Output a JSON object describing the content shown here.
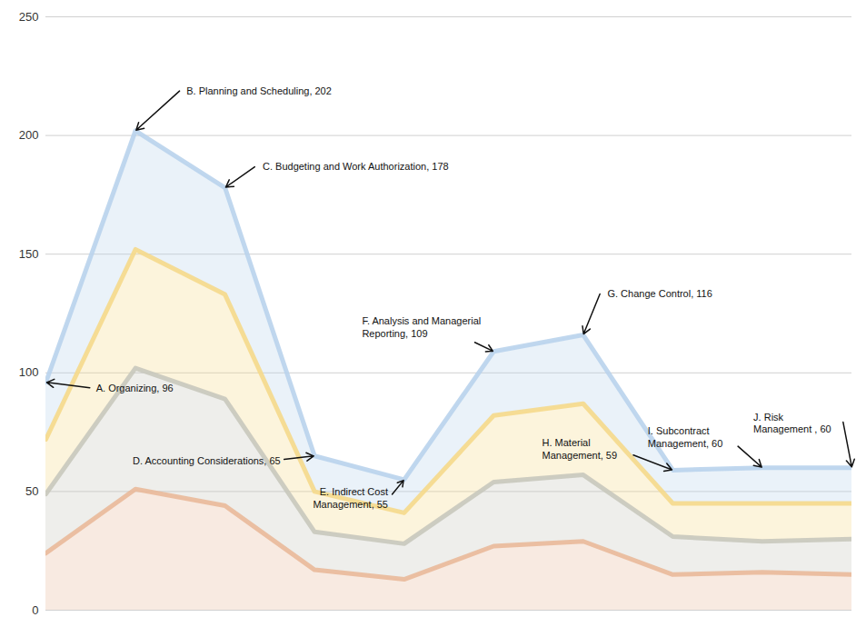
{
  "chart_data": {
    "type": "area",
    "stacked": true,
    "categories": [
      "A. Organizing",
      "B. Planning and Scheduling",
      "C. Budgeting and Work Authorization",
      "D. Accounting Considerations",
      "E. Indirect Cost Management",
      "F. Analysis and Managerial Reporting",
      "G. Change Control",
      "H. Material Management",
      "I. Subcontract Management",
      "J. Risk Management"
    ],
    "series": [
      {
        "color": "#e9b99a",
        "values": [
          24,
          51,
          44,
          17,
          13,
          27,
          29,
          15,
          16,
          15
        ]
      },
      {
        "color": "#c8c8bc",
        "values": [
          25,
          51,
          45,
          16,
          15,
          27,
          28,
          16,
          13,
          15
        ]
      },
      {
        "color": "#f5d98b",
        "values": [
          23,
          50,
          44,
          17,
          13,
          28,
          30,
          14,
          16,
          15
        ]
      },
      {
        "color": "#b9d3ec",
        "values": [
          24,
          50,
          45,
          15,
          14,
          27,
          29,
          14,
          15,
          15
        ]
      }
    ],
    "annotations": [
      {
        "category": "A. Organizing",
        "text": "A. Organizing, 96"
      },
      {
        "category": "B. Planning and Scheduling",
        "text": "B. Planning and Scheduling, 202"
      },
      {
        "category": "C. Budgeting and Work Authorization",
        "text": "C. Budgeting and Work Authorization, 178"
      },
      {
        "category": "D. Accounting Considerations",
        "text": "D. Accounting Considerations, 65"
      },
      {
        "category": "E. Indirect Cost Management",
        "text": "E. Indirect Cost\nManagement, 55"
      },
      {
        "category": "F. Analysis and Managerial Reporting",
        "text": "F. Analysis and Managerial\nReporting, 109"
      },
      {
        "category": "G. Change Control",
        "text": "G. Change Control, 116"
      },
      {
        "category": "H. Material Management",
        "text": "H. Material\nManagement, 59"
      },
      {
        "category": "I. Subcontract Management",
        "text": "I. Subcontract\nManagement, 60"
      },
      {
        "category": "J. Risk Management",
        "text": "J. Risk\nManagement , 60"
      }
    ],
    "ylim": [
      0,
      250
    ],
    "yticks": [
      0,
      50,
      100,
      150,
      200,
      250
    ],
    "grid": true,
    "tick_labels": "y"
  }
}
